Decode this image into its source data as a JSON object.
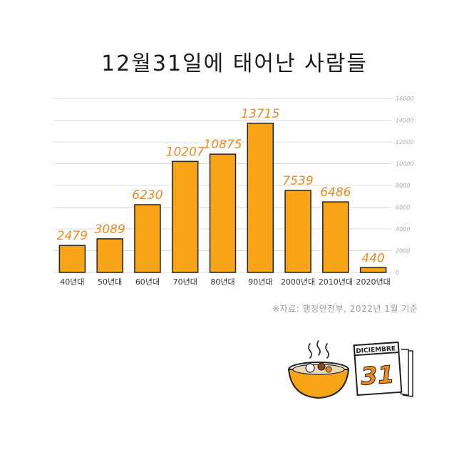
{
  "title": "12월31일에 태어난 사람들",
  "source_note": "※자료: 행정안전부, 2022년 1월 기준",
  "calendar": {
    "month": "DICIEMBRE",
    "day": "31"
  },
  "colors": {
    "bar": "#F7A416",
    "bar_stroke": "#222222",
    "value_label": "#F08A1C",
    "grid": "#DDDDDD",
    "tick": "#AAAAAA"
  },
  "chart_data": {
    "type": "bar",
    "title": "12월31일에 태어난 사람들",
    "categories": [
      "40년대",
      "50년대",
      "60년대",
      "70년대",
      "80년대",
      "90년대",
      "2000년대",
      "2010년대",
      "2020년대"
    ],
    "values": [
      2479,
      3089,
      6230,
      10207,
      10875,
      13715,
      7539,
      6486,
      440
    ],
    "ylim": [
      0,
      16000
    ],
    "yticks": [
      0,
      2000,
      4000,
      6000,
      8000,
      10000,
      12000,
      14000,
      16000
    ],
    "axis_side": "right",
    "grid": true,
    "xlabel": "",
    "ylabel": ""
  }
}
